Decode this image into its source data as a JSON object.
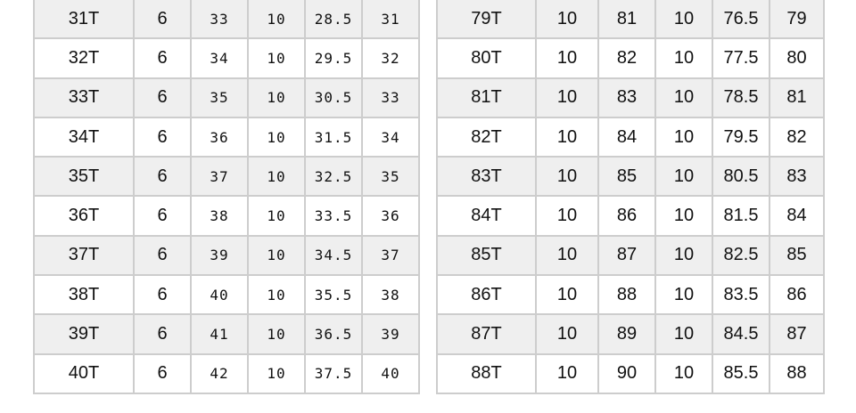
{
  "colors": {
    "stripe": "#efefef",
    "border": "#cdcdcd"
  },
  "left_table": {
    "rows": [
      [
        "31T",
        "6",
        "33",
        "10",
        "28.5",
        "31"
      ],
      [
        "32T",
        "6",
        "34",
        "10",
        "29.5",
        "32"
      ],
      [
        "33T",
        "6",
        "35",
        "10",
        "30.5",
        "33"
      ],
      [
        "34T",
        "6",
        "36",
        "10",
        "31.5",
        "34"
      ],
      [
        "35T",
        "6",
        "37",
        "10",
        "32.5",
        "35"
      ],
      [
        "36T",
        "6",
        "38",
        "10",
        "33.5",
        "36"
      ],
      [
        "37T",
        "6",
        "39",
        "10",
        "34.5",
        "37"
      ],
      [
        "38T",
        "6",
        "40",
        "10",
        "35.5",
        "38"
      ],
      [
        "39T",
        "6",
        "41",
        "10",
        "36.5",
        "39"
      ],
      [
        "40T",
        "6",
        "42",
        "10",
        "37.5",
        "40"
      ]
    ]
  },
  "right_table": {
    "rows": [
      [
        "79T",
        "10",
        "81",
        "10",
        "76.5",
        "79"
      ],
      [
        "80T",
        "10",
        "82",
        "10",
        "77.5",
        "80"
      ],
      [
        "81T",
        "10",
        "83",
        "10",
        "78.5",
        "81"
      ],
      [
        "82T",
        "10",
        "84",
        "10",
        "79.5",
        "82"
      ],
      [
        "83T",
        "10",
        "85",
        "10",
        "80.5",
        "83"
      ],
      [
        "84T",
        "10",
        "86",
        "10",
        "81.5",
        "84"
      ],
      [
        "85T",
        "10",
        "87",
        "10",
        "82.5",
        "85"
      ],
      [
        "86T",
        "10",
        "88",
        "10",
        "83.5",
        "86"
      ],
      [
        "87T",
        "10",
        "89",
        "10",
        "84.5",
        "87"
      ],
      [
        "88T",
        "10",
        "90",
        "10",
        "85.5",
        "88"
      ]
    ]
  }
}
